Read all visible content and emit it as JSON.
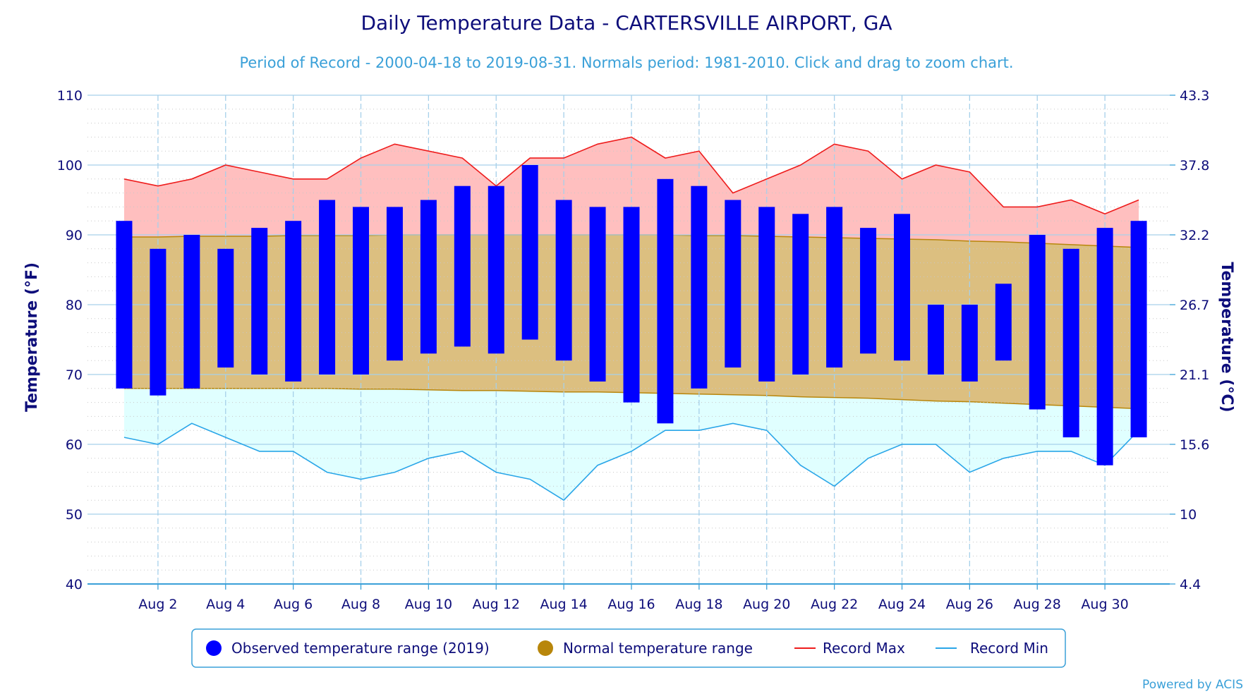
{
  "colors": {
    "title": "#0d0d7a",
    "subtitle": "#3aa0d8",
    "observed": "#0000ff",
    "normal_fill": "#dcbf80",
    "normal_line": "#b8860b",
    "record_max_fill": "#ffbfbf",
    "record_max_line": "#ee1c1c",
    "record_min_fill": "#e0ffff",
    "record_min_line": "#2aa6e8",
    "grid": "#a6d0ea",
    "axis_text": "#0d0d7a"
  },
  "credit": "Powered by ACIS",
  "chart_data": {
    "type": "bar",
    "title": "Daily Temperature Data - CARTERSVILLE AIRPORT, GA",
    "subtitle": "Period of Record - 2000-04-18 to 2019-08-31. Normals period: 1981-2010. Click and drag to zoom chart.",
    "ylabel_left": "Temperature (°F)",
    "ylabel_right": "Temperature (°C)",
    "ylim": [
      40,
      110
    ],
    "y_ticks": [
      "40",
      "50",
      "60",
      "70",
      "80",
      "90",
      "100",
      "110"
    ],
    "y_ticks_c": [
      "4.4",
      "10",
      "15.6",
      "21.1",
      "26.7",
      "32.2",
      "37.8",
      "43.3"
    ],
    "x_days": [
      1,
      2,
      3,
      4,
      5,
      6,
      7,
      8,
      9,
      10,
      11,
      12,
      13,
      14,
      15,
      16,
      17,
      18,
      19,
      20,
      21,
      22,
      23,
      24,
      25,
      26,
      27,
      28,
      29,
      30,
      31
    ],
    "x_tick_days": [
      2,
      4,
      6,
      8,
      10,
      12,
      14,
      16,
      18,
      20,
      22,
      24,
      26,
      28,
      30
    ],
    "x_tick_labels": [
      "Aug 2",
      "Aug 4",
      "Aug 6",
      "Aug 8",
      "Aug 10",
      "Aug 12",
      "Aug 14",
      "Aug 16",
      "Aug 18",
      "Aug 20",
      "Aug 22",
      "Aug 24",
      "Aug 26",
      "Aug 28",
      "Aug 30"
    ],
    "series": [
      {
        "name": "Observed temperature range (2019)",
        "low": [
          68,
          67,
          68,
          71,
          70,
          69,
          70,
          70,
          72,
          73,
          74,
          73,
          75,
          72,
          69,
          66,
          63,
          68,
          71,
          69,
          70,
          71,
          73,
          72,
          70,
          69,
          72,
          65,
          61,
          57,
          61
        ],
        "high": [
          92,
          88,
          90,
          88,
          91,
          92,
          95,
          94,
          94,
          95,
          97,
          97,
          100,
          95,
          94,
          94,
          98,
          97,
          95,
          94,
          93,
          94,
          91,
          93,
          80,
          80,
          83,
          90,
          88,
          91,
          92
        ]
      },
      {
        "name": "Normal temperature range",
        "low": [
          68,
          68,
          68,
          68,
          68,
          68,
          68,
          67.9,
          67.9,
          67.8,
          67.7,
          67.7,
          67.6,
          67.5,
          67.5,
          67.4,
          67.3,
          67.2,
          67.1,
          67.0,
          66.8,
          66.7,
          66.6,
          66.4,
          66.2,
          66.1,
          65.9,
          65.7,
          65.5,
          65.3,
          65.1
        ],
        "high": [
          89.7,
          89.7,
          89.8,
          89.8,
          89.8,
          89.9,
          89.9,
          89.9,
          90.0,
          90.0,
          90.0,
          90.0,
          90.0,
          90.0,
          90.0,
          90.0,
          90.0,
          89.9,
          89.9,
          89.8,
          89.7,
          89.6,
          89.5,
          89.4,
          89.3,
          89.1,
          89.0,
          88.8,
          88.6,
          88.4,
          88.2
        ]
      },
      {
        "name": "Record Max",
        "values": [
          98,
          97,
          98,
          100,
          99,
          98,
          98,
          101,
          103,
          102,
          101,
          97,
          101,
          101,
          103,
          104,
          101,
          102,
          96,
          98,
          100,
          103,
          102,
          98,
          100,
          99,
          94,
          94,
          95,
          93,
          95
        ]
      },
      {
        "name": "Record Min",
        "values": [
          61,
          60,
          63,
          61,
          59,
          59,
          56,
          55,
          56,
          58,
          59,
          56,
          55,
          52,
          57,
          59,
          62,
          62,
          63,
          62,
          57,
          54,
          58,
          60,
          60,
          56,
          58,
          59,
          59,
          57,
          62
        ]
      }
    ],
    "legend": [
      {
        "label": "Observed temperature range (2019)",
        "kind": "circle",
        "color": "#0000ff"
      },
      {
        "label": "Normal temperature range",
        "kind": "circle",
        "color": "#b8860b"
      },
      {
        "label": "Record Max",
        "kind": "line",
        "color": "#ee1c1c"
      },
      {
        "label": "Record Min",
        "kind": "line",
        "color": "#2aa6e8"
      }
    ],
    "legend_position": "bottom-center",
    "grid": true
  }
}
